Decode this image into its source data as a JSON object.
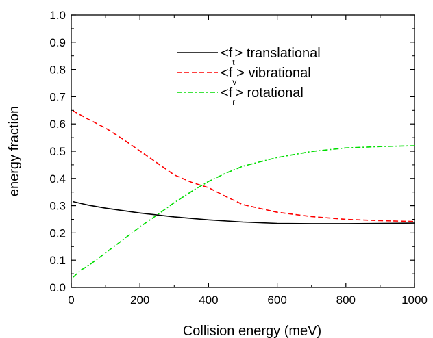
{
  "chart_data": {
    "type": "line",
    "title": "",
    "xlabel": "Collision energy (meV)",
    "ylabel": "energy fraction",
    "xlim": [
      0,
      1000
    ],
    "ylim": [
      0.0,
      1.0
    ],
    "x_ticks": [
      0,
      200,
      400,
      600,
      800,
      1000
    ],
    "x_tick_labels": [
      "0",
      "200",
      "400",
      "600",
      "800",
      "1000"
    ],
    "y_ticks": [
      0.0,
      0.1,
      0.2,
      0.3,
      0.4,
      0.5,
      0.6,
      0.7,
      0.8,
      0.9,
      1.0
    ],
    "y_tick_labels": [
      "0.0",
      "0.1",
      "0.2",
      "0.3",
      "0.4",
      "0.5",
      "0.6",
      "0.7",
      "0.8",
      "0.9",
      "1.0"
    ],
    "grid": false,
    "legend_position": "top-right",
    "series": [
      {
        "name": "translational",
        "legend_prefix": "<f",
        "legend_sub": "t",
        "legend_suffix": "> translational",
        "color": "#000000",
        "dash": "solid",
        "x": [
          5,
          50,
          100,
          200,
          300,
          400,
          500,
          600,
          700,
          800,
          900,
          1000
        ],
        "y": [
          0.315,
          0.302,
          0.291,
          0.273,
          0.259,
          0.248,
          0.24,
          0.235,
          0.234,
          0.234,
          0.235,
          0.236
        ]
      },
      {
        "name": "vibrational",
        "legend_prefix": "<f",
        "legend_sub": "v",
        "legend_suffix": "> vibrational",
        "color": "#ff0000",
        "dash": "dashed",
        "x": [
          5,
          50,
          100,
          150,
          200,
          250,
          300,
          350,
          400,
          450,
          500,
          600,
          700,
          800,
          900,
          1000
        ],
        "y": [
          0.648,
          0.617,
          0.585,
          0.545,
          0.501,
          0.457,
          0.413,
          0.386,
          0.366,
          0.334,
          0.304,
          0.276,
          0.26,
          0.25,
          0.245,
          0.242
        ]
      },
      {
        "name": "rotational",
        "legend_prefix": "<f",
        "legend_sub": "r",
        "legend_suffix": "> rotational",
        "color": "#00dd00",
        "dash": "dashdot",
        "x": [
          5,
          30,
          50,
          100,
          150,
          200,
          250,
          300,
          350,
          400,
          450,
          500,
          600,
          700,
          800,
          900,
          1000
        ],
        "y": [
          0.037,
          0.065,
          0.08,
          0.127,
          0.174,
          0.222,
          0.266,
          0.311,
          0.352,
          0.389,
          0.419,
          0.445,
          0.477,
          0.499,
          0.512,
          0.517,
          0.52
        ]
      }
    ]
  }
}
